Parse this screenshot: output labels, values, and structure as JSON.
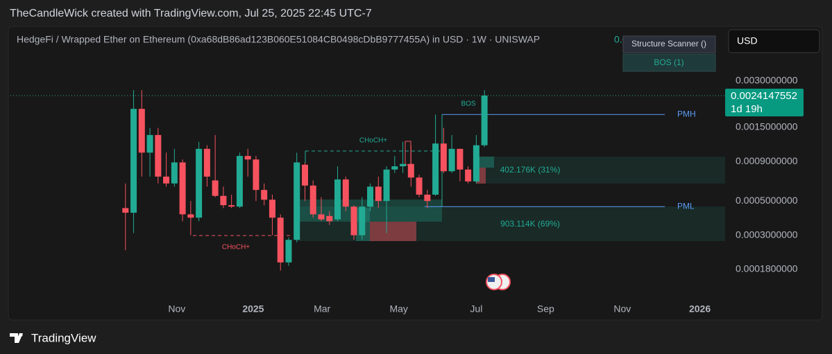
{
  "header": {
    "attribution": "TheCandleWick created with TradingView.com, Jul 25, 2025 22:45 UTC-7"
  },
  "currency": "USD",
  "indicator": {
    "name": "Structure Scanner ()",
    "legend": "BOS (1)"
  },
  "footer": {
    "brand": "TradingView"
  },
  "chart_data": {
    "type": "candlestick",
    "title": "HedgeFi / Wrapped Ether on Ethereum (0xa68dB86ad123B060E51084CB0498cDbB9777455A) in USD · 1W · UNISWAP",
    "up_color": "#22ab94",
    "down_color": "#f7525f",
    "log_scale": true,
    "grid": false,
    "x": [
      0,
      1,
      2,
      3,
      4,
      5,
      6,
      7,
      8,
      9,
      10,
      11,
      12,
      13,
      14,
      15,
      16,
      17,
      18,
      19,
      20,
      21,
      22,
      23,
      24,
      25,
      26,
      27,
      28,
      29,
      30,
      31,
      32,
      33,
      34,
      35,
      36,
      37,
      38,
      39,
      40,
      41,
      42,
      43,
      44
    ],
    "open": [
      0.00045,
      0.00042,
      0.00198,
      0.00103,
      0.00134,
      0.00072,
      0.00065,
      0.00089,
      0.00041,
      0.00039,
      0.00109,
      0.00068,
      0.00054,
      0.00047,
      0.00046,
      0.00098,
      0.00093,
      0.00059,
      0.00051,
      0.00039,
      0.0002,
      0.00028,
      0.00086,
      0.00063,
      0.00041,
      0.0004,
      0.00038,
      0.00069,
      0.00046,
      0.0003,
      0.00046,
      0.00062,
      0.0005,
      0.0008,
      0.00084,
      0.00087,
      0.00071,
      0.00055,
      0.00055,
      0.00118,
      0.00078,
      0.00109,
      0.0008,
      0.00067,
      0.00115
    ],
    "high": [
      0.00065,
      0.00262,
      0.00262,
      0.00149,
      0.00149,
      0.00103,
      0.00109,
      0.00093,
      0.0005,
      0.00121,
      0.00115,
      0.00134,
      0.00062,
      0.00055,
      0.00103,
      0.00109,
      0.00098,
      0.00065,
      0.00055,
      0.00041,
      0.00029,
      0.00103,
      0.00089,
      0.00068,
      0.00053,
      0.00043,
      0.00084,
      0.00072,
      0.00047,
      0.00053,
      0.00065,
      0.00072,
      0.00084,
      0.00098,
      0.00121,
      0.00115,
      0.00074,
      0.00059,
      0.00182,
      0.00149,
      0.00134,
      0.00109,
      0.00084,
      0.00134,
      0.00262
    ],
    "low": [
      0.00024,
      0.00031,
      0.00072,
      0.00072,
      0.00065,
      0.00062,
      0.00062,
      0.00037,
      0.0003,
      0.00037,
      0.00062,
      0.00053,
      0.00045,
      0.00045,
      0.00045,
      0.00072,
      0.0005,
      0.00047,
      0.0003,
      0.000177,
      0.00019,
      0.00027,
      0.0005,
      0.00039,
      0.00037,
      0.00035,
      0.00037,
      0.00043,
      0.00028,
      0.00028,
      0.00043,
      0.00045,
      0.00031,
      0.00076,
      0.00076,
      0.00062,
      0.00053,
      0.00045,
      0.00054,
      0.00076,
      0.00076,
      0.00067,
      0.00065,
      0.00065,
      0.00112
    ],
    "close": [
      0.00042,
      0.00198,
      0.00103,
      0.00134,
      0.00072,
      0.00065,
      0.00089,
      0.00041,
      0.00039,
      0.00109,
      0.00072,
      0.00054,
      0.00047,
      0.00046,
      0.00098,
      0.00093,
      0.00059,
      0.00051,
      0.00039,
      0.0002,
      0.00028,
      0.00089,
      0.00063,
      0.00041,
      0.00038,
      0.00037,
      0.00069,
      0.00046,
      0.0003,
      0.00046,
      0.00062,
      0.0005,
      0.0008,
      0.00084,
      0.00087,
      0.00071,
      0.00055,
      0.0005,
      0.00118,
      0.00078,
      0.00109,
      0.0008,
      0.00067,
      0.00115,
      0.0024147552
    ],
    "countdown": "1d 19h",
    "xlim": [
      -14.1,
      73.5
    ],
    "xticks": [
      {
        "value": 6.3,
        "label": "Nov"
      },
      {
        "value": 15.66,
        "label": "2025"
      },
      {
        "value": 24.1,
        "label": "Mar"
      },
      {
        "value": 33.5,
        "label": "May"
      },
      {
        "value": 43.0,
        "label": "Jul"
      },
      {
        "value": 51.5,
        "label": "Sep"
      },
      {
        "value": 60.9,
        "label": "Nov"
      },
      {
        "value": 70.4,
        "label": "2026"
      }
    ],
    "ylim": [
      0.000124,
      0.00665
    ],
    "yticks": [
      {
        "value": 0.003,
        "label": "0.0030000000"
      },
      {
        "value": 0.0015,
        "label": "0.0015000000"
      },
      {
        "value": 0.0009,
        "label": "0.0009000000"
      },
      {
        "value": 0.0005,
        "label": "0.0005000000"
      },
      {
        "value": 0.0003,
        "label": "0.0003000000"
      },
      {
        "value": 0.00018,
        "label": "0.0001800000"
      }
    ],
    "levels": [
      {
        "label": "PMH",
        "value": 0.00182
      },
      {
        "label": "PML",
        "value": 0.00046
      }
    ],
    "annotations": [
      "BOS",
      "CHoCH+",
      "CHoCH+",
      "402.176K (31%)",
      "903.114K (69%)"
    ]
  }
}
